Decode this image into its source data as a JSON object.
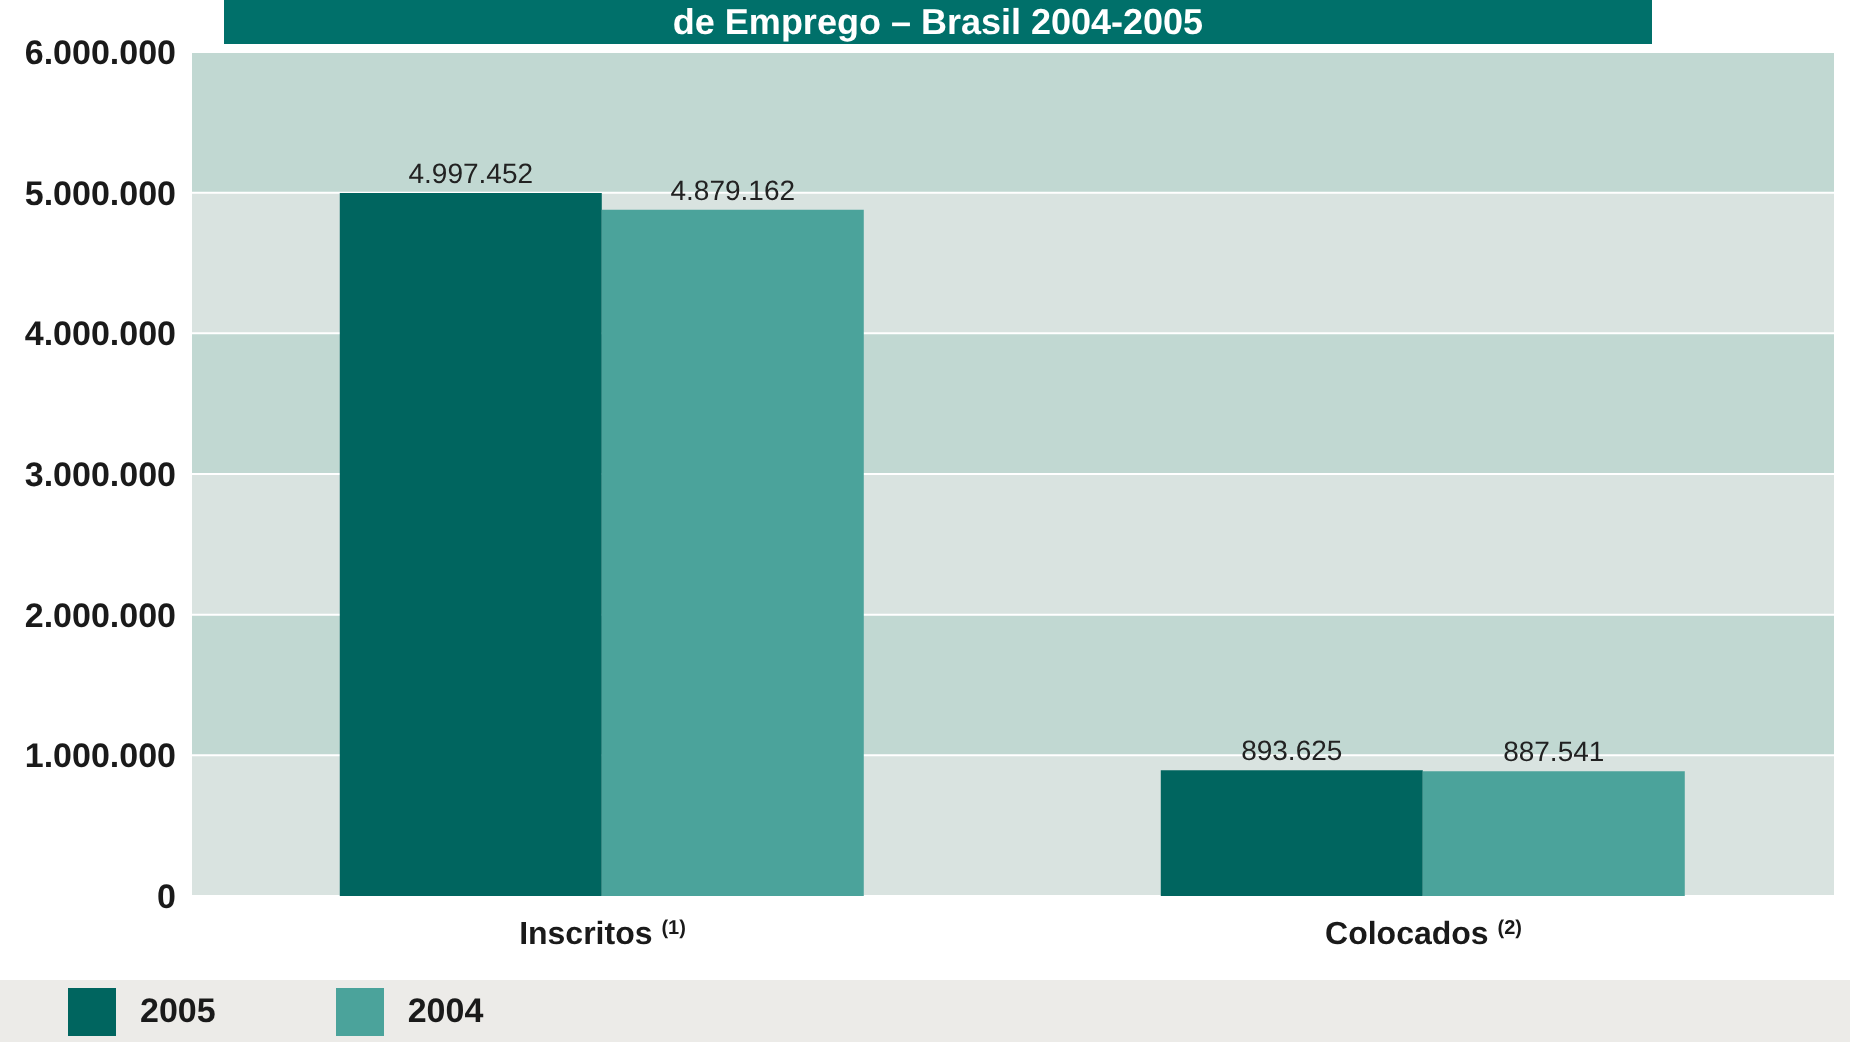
{
  "chart_data": {
    "type": "bar",
    "title": "de Emprego – Brasil 2004-2005",
    "categories": [
      "Inscritos $^{(1)}$",
      "Colocados $^{(2)}$"
    ],
    "series": [
      {
        "name": "2005",
        "color": "#00655f",
        "values": [
          4997452,
          893625
        ],
        "value_labels": [
          "4.997.452",
          "893.625"
        ]
      },
      {
        "name": "2004",
        "color": "#4ba39b",
        "values": [
          4879162,
          887541
        ],
        "value_labels": [
          "4.879.162",
          "887.541"
        ]
      }
    ],
    "ylim": [
      0,
      6000000
    ],
    "yticks": [
      {
        "value": 0,
        "label": "0"
      },
      {
        "value": 1000000,
        "label": "1.000.000"
      },
      {
        "value": 2000000,
        "label": "2.000.000"
      },
      {
        "value": 3000000,
        "label": "3.000.000"
      },
      {
        "value": 4000000,
        "label": "4.000.000"
      },
      {
        "value": 5000000,
        "label": "5.000.000"
      },
      {
        "value": 6000000,
        "label": "6.000.000"
      }
    ],
    "grid": "y",
    "legend": "bottom"
  }
}
